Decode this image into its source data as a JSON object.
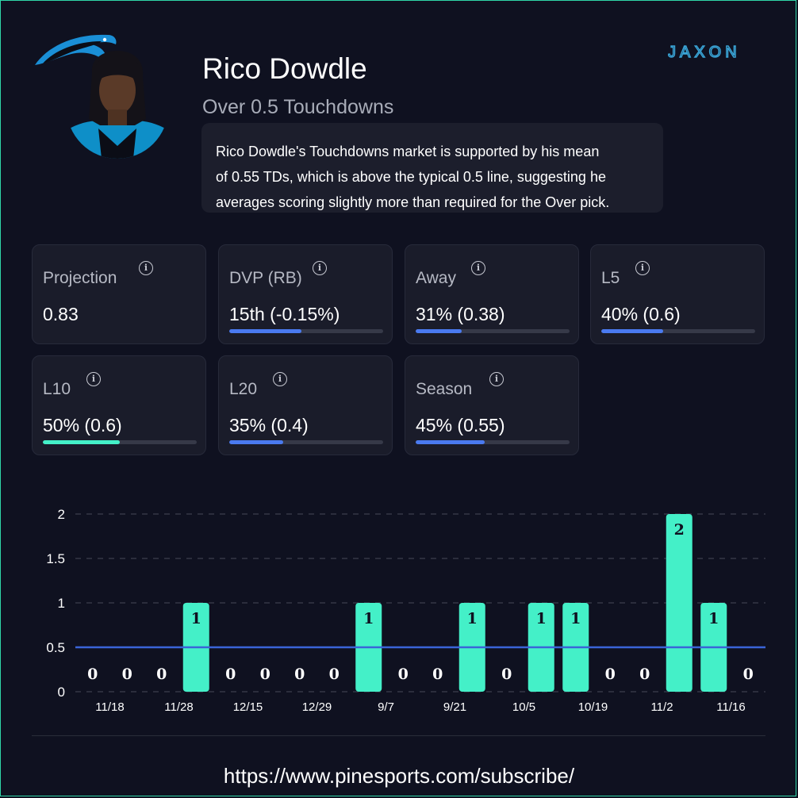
{
  "header": {
    "player_name": "Rico Dowdle",
    "market": "Over 0.5 Touchdowns",
    "description_lines": [
      "Rico Dowdle's Touchdowns market is supported by his mean",
      "of 0.55 TDs, which is above the typical 0.5 line, suggesting he",
      "averages scoring slightly more than required for the Over pick."
    ],
    "team_logo_icon": "panther-logo-icon",
    "avatar_icon": "player-headshot",
    "brand_logo": "JAXON"
  },
  "cards": [
    {
      "label": "Projection",
      "value": "0.83"
    },
    {
      "label": "DVP (RB)",
      "value": "15th (-0.15%)",
      "fill": 0.47
    },
    {
      "label": "Away",
      "value": "31% (0.38)",
      "fill": 0.3
    },
    {
      "label": "L5",
      "value": "40% (0.6)",
      "fill": 0.4
    },
    {
      "label": "L10",
      "value": "50% (0.6)",
      "fill": 0.5,
      "highlight": true
    },
    {
      "label": "L20",
      "value": "35% (0.4)",
      "fill": 0.35
    },
    {
      "label": "Season",
      "value": "45% (0.55)",
      "fill": 0.45
    }
  ],
  "chart_data": {
    "type": "bar",
    "values": [
      0,
      0,
      0,
      1,
      0,
      0,
      0,
      0,
      1,
      0,
      0,
      1,
      0,
      1,
      1,
      0,
      0,
      2,
      1,
      0
    ],
    "x_tick_labels": [
      "11/18",
      "11/28",
      "12/15",
      "12/29",
      "9/7",
      "9/21",
      "10/5",
      "10/19",
      "11/2",
      "11/16"
    ],
    "x_tick_positions": [
      1,
      3,
      5,
      7,
      9,
      11,
      13,
      15,
      17,
      19
    ],
    "y_ticks": [
      "0",
      "0.5",
      "1",
      "1.5",
      "2"
    ],
    "ylim": [
      0,
      2
    ],
    "reference_line": 0.5,
    "grid": true,
    "bar_color": "#44f0c8",
    "line_color": "#3a64d8"
  },
  "footer": {
    "url": "https://www.pinesports.com/subscribe/"
  },
  "colors": {
    "accent_blue": "#4a7af0",
    "accent_green": "#44f0c8",
    "background": "#0f1120"
  }
}
